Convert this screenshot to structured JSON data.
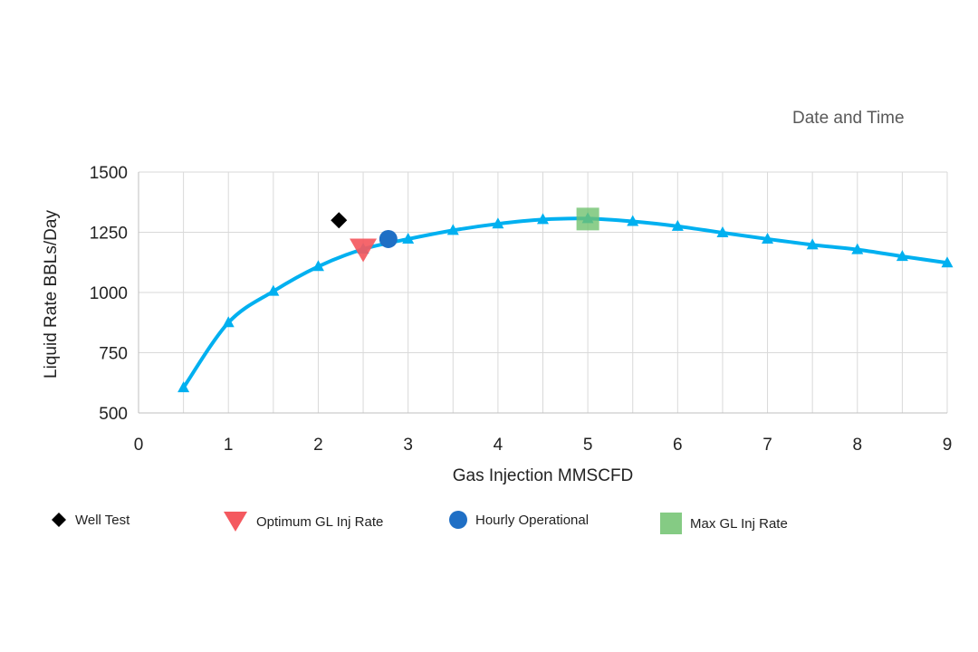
{
  "header": {
    "date_label": "Date and Time"
  },
  "chart_data": {
    "type": "line",
    "xlabel": "Gas Injection MMSCFD",
    "ylabel": "Liquid Rate BBLs/Day",
    "xlim": [
      0,
      9
    ],
    "ylim": [
      500,
      1500
    ],
    "x_ticks": [
      "0",
      "1",
      "2",
      "3",
      "4",
      "5",
      "6",
      "7",
      "8",
      "9"
    ],
    "y_ticks": [
      "500",
      "750",
      "1000",
      "1250",
      "1500"
    ],
    "grid": true,
    "colors": {
      "curve": "#00B0F0",
      "well_test": "#000000",
      "optimum": "#F4595F",
      "hourly": "#1F6FC5",
      "max": "#70C26F"
    },
    "series": [
      {
        "x": [
          0.5,
          1.0,
          1.5,
          2.0,
          2.5,
          3.0,
          3.5,
          4.0,
          4.5,
          5.0,
          5.5,
          6.0,
          6.5,
          7.0,
          7.5,
          8.0,
          8.5,
          9.0
        ],
        "y": [
          605,
          875,
          1005,
          1108,
          1180,
          1222,
          1258,
          1285,
          1303,
          1307,
          1295,
          1275,
          1248,
          1222,
          1198,
          1178,
          1150,
          1123
        ]
      }
    ],
    "markers": [
      {
        "name": "Well Test",
        "shape": "diamond",
        "x": 2.23,
        "y": 1300
      },
      {
        "name": "Optimum GL Inj Rate",
        "shape": "triangle-down",
        "x": 2.5,
        "y": 1175
      },
      {
        "name": "Hourly Operational",
        "shape": "circle",
        "x": 2.78,
        "y": 1222
      },
      {
        "name": "Max GL Inj Rate",
        "shape": "square",
        "x": 5.0,
        "y": 1305
      }
    ]
  },
  "legend": {
    "well_test": "Well Test",
    "optimum": "Optimum GL Inj Rate",
    "hourly": "Hourly Operational",
    "max": "Max GL Inj Rate"
  }
}
